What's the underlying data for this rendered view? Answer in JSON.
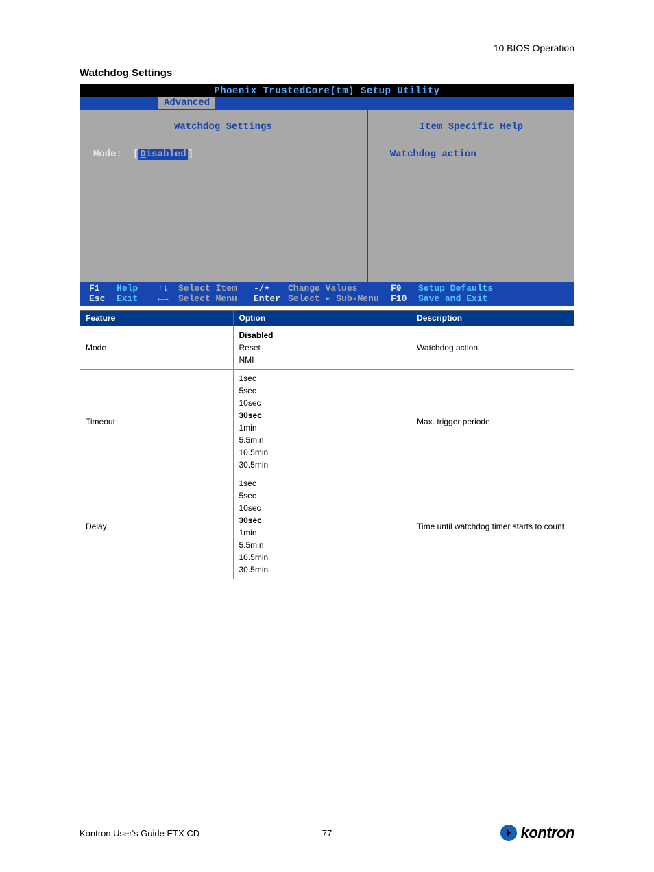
{
  "header": {
    "chapter": "10 BIOS Operation"
  },
  "section": {
    "title": "Watchdog Settings"
  },
  "bios": {
    "title": "Phoenix TrustedCore(tm) Setup Utility",
    "tab": "Advanced",
    "panel_title": "Watchdog Settings",
    "field_label": "Mode:",
    "field_value": "Disabled",
    "help_title": "Item Specific Help",
    "help_text": "Watchdog action",
    "footer": {
      "f1": "F1",
      "help": "Help",
      "updown": "↑↓",
      "select_item": "Select Item",
      "pm": "-/+",
      "change_values": "Change Values",
      "f9": "F9",
      "setup_defaults": "Setup Defaults",
      "esc": "Esc",
      "exit": "Exit",
      "lr": "←→",
      "select_menu": "Select Menu",
      "enter": "Enter",
      "select_sub": "Select ▸ Sub-Menu",
      "f10": "F10",
      "save_exit": "Save and Exit"
    }
  },
  "table": {
    "headers": [
      "Feature",
      "Option",
      "Description"
    ],
    "rows": [
      {
        "feature": "Mode",
        "options": [
          {
            "text": "Disabled",
            "bold": true
          },
          {
            "text": "Reset",
            "bold": false
          },
          {
            "text": "NMI",
            "bold": false
          }
        ],
        "description": "Watchdog action"
      },
      {
        "feature": "Timeout",
        "options": [
          {
            "text": "1sec",
            "bold": false
          },
          {
            "text": "5sec",
            "bold": false
          },
          {
            "text": "10sec",
            "bold": false
          },
          {
            "text": "30sec",
            "bold": true
          },
          {
            "text": "1min",
            "bold": false
          },
          {
            "text": "5.5min",
            "bold": false
          },
          {
            "text": "10.5min",
            "bold": false
          },
          {
            "text": "30.5min",
            "bold": false
          }
        ],
        "description": "Max. trigger periode"
      },
      {
        "feature": "Delay",
        "options": [
          {
            "text": "1sec",
            "bold": false
          },
          {
            "text": "5sec",
            "bold": false
          },
          {
            "text": "10sec",
            "bold": false
          },
          {
            "text": "30sec",
            "bold": true
          },
          {
            "text": "1min",
            "bold": false
          },
          {
            "text": "5.5min",
            "bold": false
          },
          {
            "text": "10.5min",
            "bold": false
          },
          {
            "text": "30.5min",
            "bold": false
          }
        ],
        "description": "Time until watchdog timer starts to count"
      }
    ]
  },
  "footer": {
    "guide": "Kontron User's Guide ETX CD",
    "page": "77",
    "brand": "kontron"
  }
}
